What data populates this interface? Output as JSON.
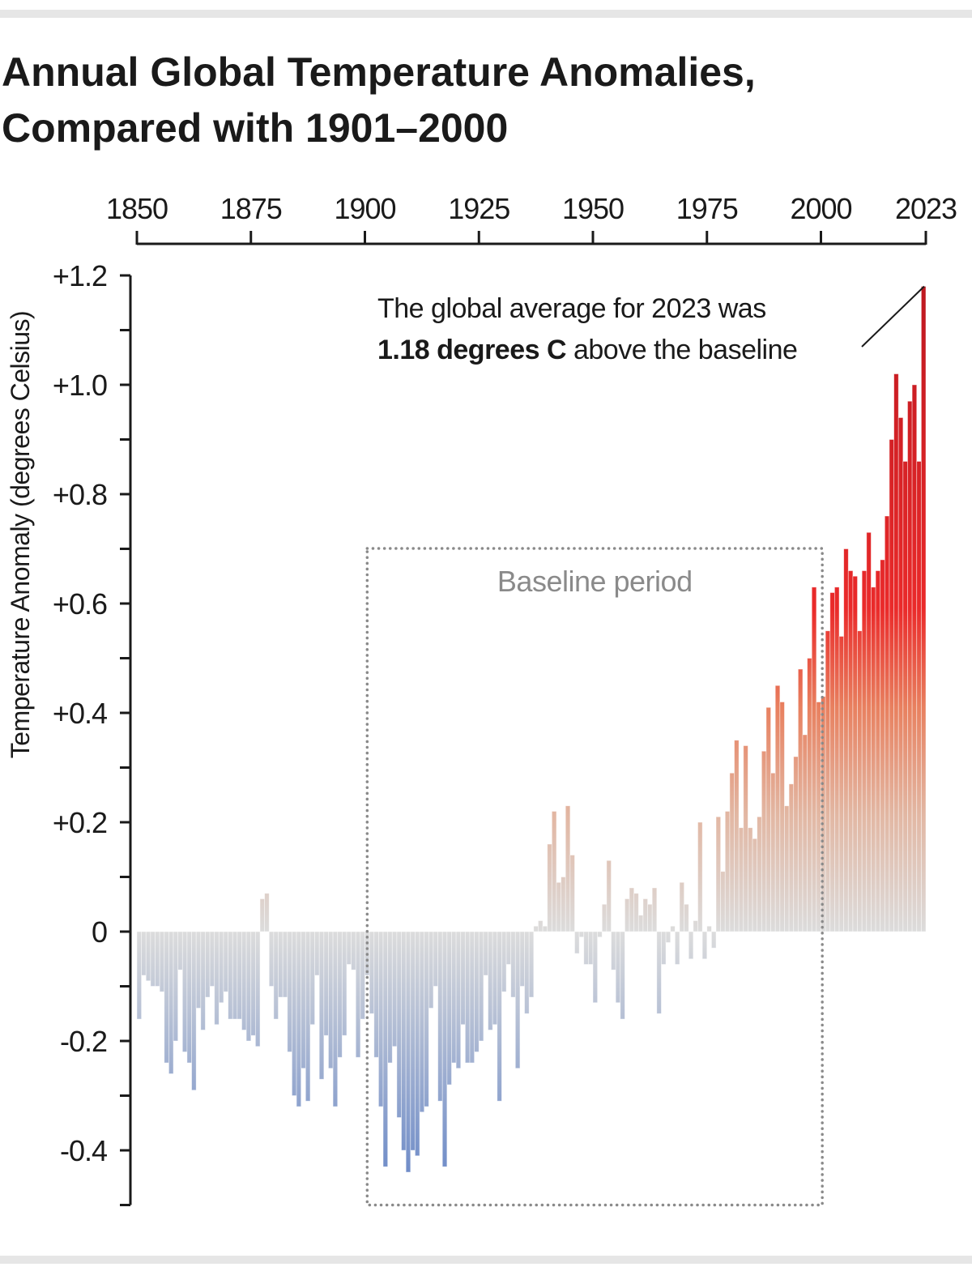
{
  "title_lines": [
    "Annual Global Temperature Anomalies,",
    "Compared with 1901–2000"
  ],
  "chart_data": {
    "type": "bar",
    "title": "Annual Global Temperature Anomalies, Compared with 1901–2000",
    "xlabel": "",
    "ylabel": "Temperature Anomaly (degrees Celsius)",
    "x_ticks": [
      "1850",
      "1875",
      "1900",
      "1925",
      "1950",
      "1975",
      "2000",
      "2023"
    ],
    "y_ticks": [
      "+1.2",
      "+1.0",
      "+0.8",
      "+0.6",
      "+0.4",
      "+0.2",
      "0",
      "-0.2",
      "-0.4"
    ],
    "y_tick_values": [
      1.2,
      1.0,
      0.8,
      0.6,
      0.4,
      0.2,
      0,
      -0.2,
      -0.4
    ],
    "xlim": [
      1850,
      2023
    ],
    "ylim": [
      -0.5,
      1.2
    ],
    "x_axis_position": "top",
    "grid": false,
    "colors": {
      "cold": "#6f8cc8",
      "neutral": "#dcdcdc",
      "warm": "#e8805f",
      "hot": "#e41f26",
      "hottest": "#c0191f"
    },
    "start_year": 1850,
    "values": [
      -0.16,
      -0.08,
      -0.09,
      -0.1,
      -0.1,
      -0.11,
      -0.24,
      -0.26,
      -0.2,
      -0.07,
      -0.22,
      -0.24,
      -0.29,
      -0.14,
      -0.18,
      -0.12,
      -0.1,
      -0.17,
      -0.13,
      -0.11,
      -0.16,
      -0.16,
      -0.16,
      -0.18,
      -0.2,
      -0.19,
      -0.21,
      0.06,
      0.07,
      -0.1,
      -0.16,
      -0.12,
      -0.12,
      -0.22,
      -0.3,
      -0.32,
      -0.25,
      -0.31,
      -0.17,
      -0.08,
      -0.27,
      -0.19,
      -0.25,
      -0.32,
      -0.23,
      -0.19,
      -0.06,
      -0.07,
      -0.23,
      -0.16,
      -0.08,
      -0.15,
      -0.23,
      -0.32,
      -0.43,
      -0.24,
      -0.21,
      -0.34,
      -0.4,
      -0.44,
      -0.4,
      -0.41,
      -0.33,
      -0.32,
      -0.14,
      -0.1,
      -0.31,
      -0.43,
      -0.28,
      -0.24,
      -0.25,
      -0.17,
      -0.24,
      -0.24,
      -0.22,
      -0.2,
      -0.08,
      -0.18,
      -0.17,
      -0.31,
      -0.11,
      -0.06,
      -0.12,
      -0.25,
      -0.1,
      -0.15,
      -0.12,
      0.01,
      0.02,
      0.01,
      0.16,
      0.22,
      0.09,
      0.1,
      0.23,
      0.14,
      -0.04,
      -0.01,
      -0.06,
      -0.06,
      -0.13,
      -0.01,
      0.05,
      0.13,
      -0.07,
      -0.13,
      -0.16,
      0.06,
      0.08,
      0.07,
      0.03,
      0.06,
      0.05,
      0.08,
      -0.15,
      -0.06,
      -0.02,
      0.01,
      -0.06,
      0.09,
      0.05,
      -0.05,
      0.02,
      0.2,
      -0.05,
      0.01,
      -0.03,
      0.21,
      0.11,
      0.22,
      0.29,
      0.35,
      0.19,
      0.34,
      0.19,
      0.17,
      0.21,
      0.33,
      0.41,
      0.29,
      0.45,
      0.42,
      0.23,
      0.27,
      0.32,
      0.48,
      0.36,
      0.5,
      0.63,
      0.42,
      0.43,
      0.55,
      0.62,
      0.63,
      0.54,
      0.7,
      0.66,
      0.65,
      0.55,
      0.66,
      0.73,
      0.63,
      0.66,
      0.68,
      0.76,
      0.9,
      1.02,
      0.94,
      0.86,
      0.97,
      1.0,
      0.86,
      0.9,
      1.18
    ],
    "baseline_period": {
      "label": "Baseline period",
      "start": 1901,
      "end": 2000
    },
    "annotation": {
      "line1": "The global average for 2023 was",
      "line2_bold": "1.18 degrees C",
      "line2_rest": " above the baseline",
      "year": 2023,
      "value": 1.18
    }
  }
}
